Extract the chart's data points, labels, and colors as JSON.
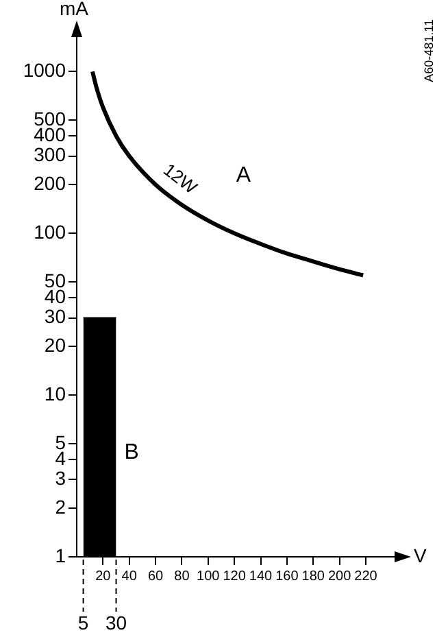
{
  "chart_data": {
    "type": "line",
    "xlabel": "V",
    "ylabel": "mA",
    "xlim": [
      0,
      244
    ],
    "xticks": [
      20,
      40,
      60,
      80,
      100,
      120,
      140,
      160,
      180,
      200,
      220
    ],
    "ref_lines": [
      {
        "axis": "x",
        "value": 5,
        "label": "5",
        "line_style": "dashed"
      },
      {
        "axis": "x",
        "value": 30,
        "label": "30",
        "line_style": "dashed"
      }
    ],
    "ylim": [
      1,
      1700
    ],
    "yticks": [
      1,
      2,
      3,
      4,
      5,
      10,
      20,
      30,
      40,
      50,
      100,
      200,
      300,
      400,
      500,
      1000
    ],
    "log": "y",
    "grid": false,
    "legend": false,
    "marker": "none",
    "line_style": "solid",
    "series": [
      {
        "name": "12W",
        "type": "line",
        "color": "#000000",
        "x": [
          12,
          15,
          20,
          30,
          40,
          60,
          80,
          100,
          120,
          140,
          160,
          180,
          200,
          218
        ],
        "values": [
          1000,
          800,
          600,
          400,
          300,
          200,
          150,
          120,
          100,
          86,
          75,
          67,
          60,
          55
        ]
      },
      {
        "name": "B",
        "type": "area",
        "color": "#000000",
        "x": [
          5,
          30
        ],
        "values": [
          30,
          30
        ]
      }
    ],
    "annotations": [
      "A",
      "A60-481.11"
    ]
  }
}
